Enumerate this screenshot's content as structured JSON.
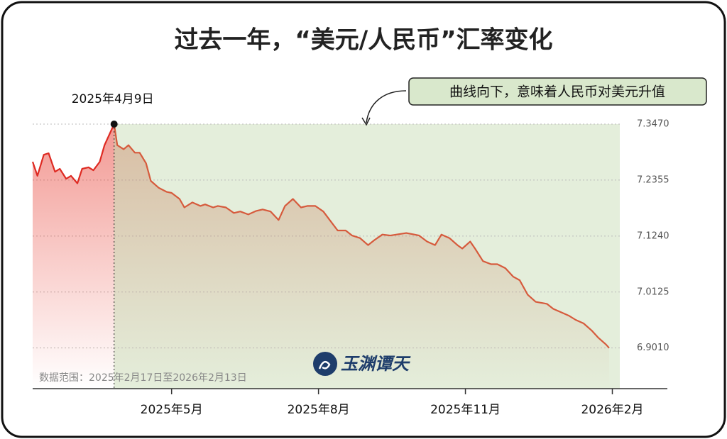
{
  "chart_data": {
    "type": "line",
    "title": "过去一年，“美元/人民币”汇率变化",
    "annotations": [
      {
        "text": "2025年4月9日",
        "x": "2025-04-09"
      },
      {
        "text": "曲线向下，意味着人民币对美元升值"
      }
    ],
    "note": "数据范围：2025年2月17日至2026年2月13日",
    "logo": "玉渊谭天",
    "x": [
      "2025-02-17",
      "2025-02-20",
      "2025-02-24",
      "2025-02-27",
      "2025-03-03",
      "2025-03-06",
      "2025-03-10",
      "2025-03-13",
      "2025-03-17",
      "2025-03-20",
      "2025-03-24",
      "2025-03-27",
      "2025-03-31",
      "2025-04-03",
      "2025-04-09",
      "2025-04-11",
      "2025-04-15",
      "2025-04-18",
      "2025-04-22",
      "2025-04-25",
      "2025-04-29",
      "2025-05-02",
      "2025-05-07",
      "2025-05-12",
      "2025-05-15",
      "2025-05-20",
      "2025-05-23",
      "2025-05-28",
      "2025-06-02",
      "2025-06-05",
      "2025-06-10",
      "2025-06-13",
      "2025-06-18",
      "2025-06-23",
      "2025-06-27",
      "2025-07-02",
      "2025-07-07",
      "2025-07-11",
      "2025-07-16",
      "2025-07-21",
      "2025-07-25",
      "2025-07-30",
      "2025-08-04",
      "2025-08-08",
      "2025-08-13",
      "2025-08-18",
      "2025-08-22",
      "2025-08-27",
      "2025-09-01",
      "2025-09-05",
      "2025-09-10",
      "2025-09-15",
      "2025-09-19",
      "2025-09-24",
      "2025-09-29",
      "2025-10-09",
      "2025-10-14",
      "2025-10-17",
      "2025-10-22",
      "2025-10-27",
      "2025-10-31",
      "2025-11-05",
      "2025-11-10",
      "2025-11-13",
      "2025-11-18",
      "2025-11-21",
      "2025-11-26",
      "2025-12-01",
      "2025-12-05",
      "2025-12-10",
      "2025-12-15",
      "2025-12-19",
      "2025-12-24",
      "2025-12-29",
      "2026-01-05",
      "2026-01-09",
      "2026-01-14",
      "2026-01-19",
      "2026-01-23",
      "2026-01-28",
      "2026-02-02",
      "2026-02-06",
      "2026-02-11",
      "2026-02-13"
    ],
    "series": [
      {
        "name": "美元/人民币",
        "color": "#d65a3c",
        "color_before": "#de2a22",
        "values": [
          7.272,
          7.244,
          7.286,
          7.289,
          7.252,
          7.258,
          7.238,
          7.244,
          7.229,
          7.258,
          7.261,
          7.255,
          7.272,
          7.305,
          7.347,
          7.305,
          7.297,
          7.305,
          7.29,
          7.29,
          7.269,
          7.234,
          7.22,
          7.212,
          7.21,
          7.198,
          7.181,
          7.191,
          7.184,
          7.187,
          7.181,
          7.184,
          7.181,
          7.17,
          7.173,
          7.167,
          7.174,
          7.177,
          7.173,
          7.156,
          7.184,
          7.198,
          7.181,
          7.184,
          7.184,
          7.173,
          7.156,
          7.135,
          7.135,
          7.125,
          7.12,
          7.106,
          7.116,
          7.127,
          7.125,
          7.13,
          7.127,
          7.125,
          7.113,
          7.106,
          7.127,
          7.12,
          7.106,
          7.099,
          7.113,
          7.099,
          7.074,
          7.068,
          7.068,
          7.06,
          7.043,
          7.036,
          7.007,
          6.993,
          6.989,
          6.979,
          6.972,
          6.965,
          6.957,
          6.95,
          6.936,
          6.922,
          6.908,
          6.901
        ]
      }
    ],
    "xlim": [
      "2025-02-17",
      "2026-02-13"
    ],
    "xticks": [
      {
        "value": "2025-05-15",
        "label": "2025年5月"
      },
      {
        "value": "2025-08-15",
        "label": "2025年8月"
      },
      {
        "value": "2025-11-15",
        "label": "2025年11月"
      },
      {
        "value": "2026-02-15",
        "label": "2026年2月"
      }
    ],
    "ylim": [
      6.82,
      7.347
    ],
    "yticks": [
      {
        "value": 7.347,
        "label": "7.3470"
      },
      7.2355,
      {
        "value": 7.124,
        "label": "7.1240"
      },
      7.0125,
      {
        "value": 6.901,
        "label": "6.9010"
      }
    ],
    "grid": true,
    "highlight_color": "#e4eedb"
  }
}
